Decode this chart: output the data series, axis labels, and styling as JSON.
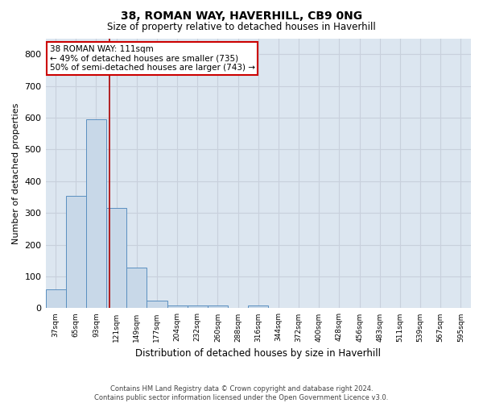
{
  "title": "38, ROMAN WAY, HAVERHILL, CB9 0NG",
  "subtitle": "Size of property relative to detached houses in Haverhill",
  "xlabel": "Distribution of detached houses by size in Haverhill",
  "ylabel": "Number of detached properties",
  "footnote1": "Contains HM Land Registry data © Crown copyright and database right 2024.",
  "footnote2": "Contains public sector information licensed under the Open Government Licence v3.0.",
  "bar_labels": [
    "37sqm",
    "65sqm",
    "93sqm",
    "121sqm",
    "149sqm",
    "177sqm",
    "204sqm",
    "232sqm",
    "260sqm",
    "288sqm",
    "316sqm",
    "344sqm",
    "372sqm",
    "400sqm",
    "428sqm",
    "456sqm",
    "483sqm",
    "511sqm",
    "539sqm",
    "567sqm",
    "595sqm"
  ],
  "bar_values": [
    60,
    355,
    595,
    315,
    128,
    25,
    8,
    8,
    8,
    0,
    8,
    0,
    0,
    0,
    0,
    0,
    0,
    0,
    0,
    0,
    0
  ],
  "bar_color": "#c8d8e8",
  "bar_edge_color": "#5a8fc0",
  "grid_color": "#c8d0dc",
  "bg_color": "#dce6f0",
  "vline_color": "#aa0000",
  "annotation_line1": "38 ROMAN WAY: 111sqm",
  "annotation_line2": "← 49% of detached houses are smaller (735)",
  "annotation_line3": "50% of semi-detached houses are larger (743) →",
  "annotation_box_color": "#cc0000",
  "ylim": [
    0,
    850
  ],
  "yticks": [
    0,
    100,
    200,
    300,
    400,
    500,
    600,
    700,
    800
  ]
}
